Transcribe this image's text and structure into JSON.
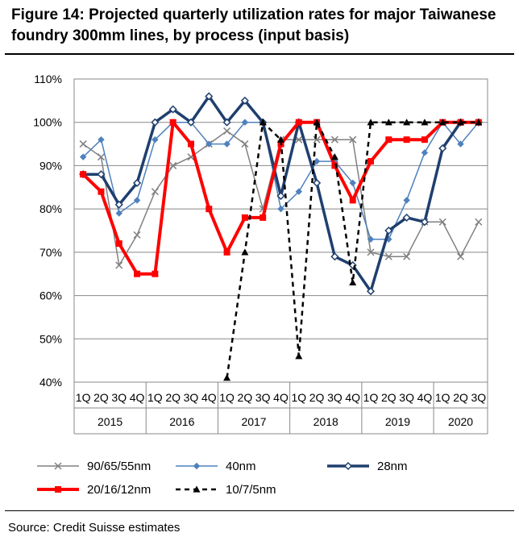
{
  "title": "Figure 14: Projected quarterly utilization rates for major Taiwanese foundry 300mm lines, by process (input basis)",
  "source": "Source: Credit Suisse estimates",
  "chart_data": {
    "type": "line",
    "ylim": [
      0.4,
      1.1
    ],
    "y_ticks": [
      "40%",
      "50%",
      "60%",
      "70%",
      "80%",
      "90%",
      "100%",
      "110%"
    ],
    "grid": "horizontal",
    "legend_position": "bottom",
    "quarters": [
      "1Q",
      "2Q",
      "3Q",
      "4Q",
      "1Q",
      "2Q",
      "3Q",
      "4Q",
      "1Q",
      "2Q",
      "3Q",
      "4Q",
      "1Q",
      "2Q",
      "3Q",
      "4Q",
      "1Q",
      "2Q",
      "3Q",
      "4Q",
      "1Q",
      "2Q",
      "3Q"
    ],
    "years": [
      {
        "label": "2015",
        "span": 4
      },
      {
        "label": "2016",
        "span": 4
      },
      {
        "label": "2017",
        "span": 4
      },
      {
        "label": "2018",
        "span": 4
      },
      {
        "label": "2019",
        "span": 4
      },
      {
        "label": "2020",
        "span": 3
      }
    ],
    "series": [
      {
        "name": "90/65/55nm",
        "color": "#808080",
        "marker": "x",
        "dash": "solid",
        "width": 1.5,
        "values": [
          0.95,
          0.92,
          0.67,
          0.74,
          0.84,
          0.9,
          0.92,
          0.95,
          0.98,
          0.95,
          0.8,
          0.96,
          0.96,
          0.96,
          0.96,
          0.96,
          0.7,
          0.69,
          0.69,
          0.77,
          0.77,
          0.69,
          0.77
        ]
      },
      {
        "name": "40nm",
        "color": "#4f81bd",
        "marker": "diamond",
        "dash": "solid",
        "width": 1.5,
        "values": [
          0.92,
          0.96,
          0.79,
          0.82,
          0.96,
          1.0,
          1.0,
          0.95,
          0.95,
          1.0,
          1.0,
          0.8,
          0.84,
          0.91,
          0.91,
          0.86,
          0.73,
          0.73,
          0.82,
          0.93,
          1.0,
          0.95,
          1.0
        ]
      },
      {
        "name": "28nm",
        "color": "#1f3f6e",
        "marker": "diamond-open",
        "dash": "solid",
        "width": 3.5,
        "values": [
          0.88,
          0.88,
          0.81,
          0.86,
          1.0,
          1.03,
          1.0,
          1.06,
          1.0,
          1.05,
          1.0,
          0.83,
          1.0,
          0.86,
          0.69,
          0.67,
          0.61,
          0.75,
          0.78,
          0.77,
          0.94,
          1.0,
          1.0
        ]
      },
      {
        "name": "20/16/12nm",
        "color": "#ff0000",
        "marker": "square",
        "dash": "solid",
        "width": 4,
        "values": [
          0.88,
          0.84,
          0.72,
          0.65,
          0.65,
          1.0,
          0.95,
          0.8,
          0.7,
          0.78,
          0.78,
          0.95,
          1.0,
          1.0,
          0.9,
          0.82,
          0.91,
          0.96,
          0.96,
          0.96,
          1.0,
          1.0,
          1.0
        ]
      },
      {
        "name": "10/7/5nm",
        "color": "#000000",
        "marker": "triangle",
        "dash": "dashed",
        "width": 2.5,
        "values": [
          null,
          null,
          null,
          null,
          null,
          null,
          null,
          null,
          0.41,
          0.7,
          1.0,
          0.96,
          0.46,
          1.0,
          0.92,
          0.63,
          1.0,
          1.0,
          1.0,
          1.0,
          1.0,
          1.0,
          1.0
        ]
      }
    ]
  }
}
